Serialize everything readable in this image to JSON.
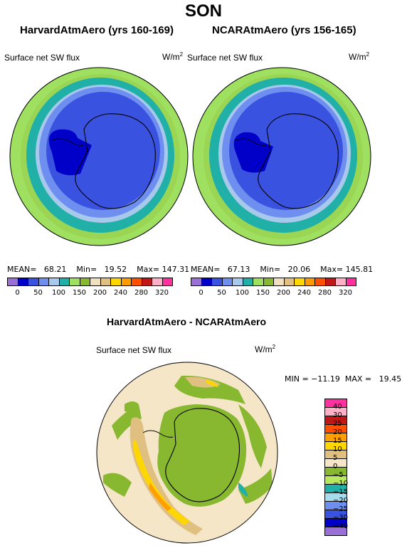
{
  "title": "SON",
  "panels": [
    {
      "title": "HarvardAtmAero (yrs 160-169)",
      "field": "Surface net SW flux",
      "unit": "W/m",
      "unit_sup": "2",
      "mean_label": "MEAN=",
      "mean": "68.21",
      "min_label": "Min=",
      "min": "19.52",
      "max_label": "Max=",
      "max": "147.31"
    },
    {
      "title": "NCARAtmAero (yrs 156-165)",
      "field": "Surface net SW flux",
      "unit": "W/m",
      "unit_sup": "2",
      "mean_label": "MEAN=",
      "mean": "67.13",
      "min_label": "Min=",
      "min": "20.06",
      "max_label": "Max=",
      "max": "145.81"
    }
  ],
  "colorbar": {
    "colors": [
      "#9a6fd6",
      "#0000c8",
      "#3a52e0",
      "#6e8ff0",
      "#a8c8ec",
      "#20b0a8",
      "#a0e060",
      "#88b830",
      "#f0e0c0",
      "#e0c080",
      "#ffd700",
      "#ff9a00",
      "#ff5000",
      "#c01818",
      "#ffb0c8",
      "#ff30a0"
    ],
    "labels": [
      "0",
      "50",
      "100",
      "150",
      "200",
      "240",
      "280",
      "320"
    ]
  },
  "diff": {
    "title": "HarvardAtmAero - NCARAtmAero",
    "field": "Surface net SW flux",
    "unit": "W/m",
    "unit_sup": "2",
    "minmax": "MIN = −11.19  MAX =   19.45",
    "colors": [
      "#ff30a0",
      "#ffb0c8",
      "#c01818",
      "#ff5000",
      "#ffa000",
      "#ffd700",
      "#e0c080",
      "#f5e6c8",
      "#88b830",
      "#b8e860",
      "#20b0a8",
      "#a8dcec",
      "#6e8ff0",
      "#3a52e0",
      "#0000c8",
      "#9a6fd6"
    ],
    "labels": [
      "40",
      "30",
      "25",
      "20",
      "15",
      "10",
      "5",
      "0",
      "−5",
      "−10",
      "−15",
      "−20",
      "−25",
      "−30",
      "−40"
    ]
  }
}
